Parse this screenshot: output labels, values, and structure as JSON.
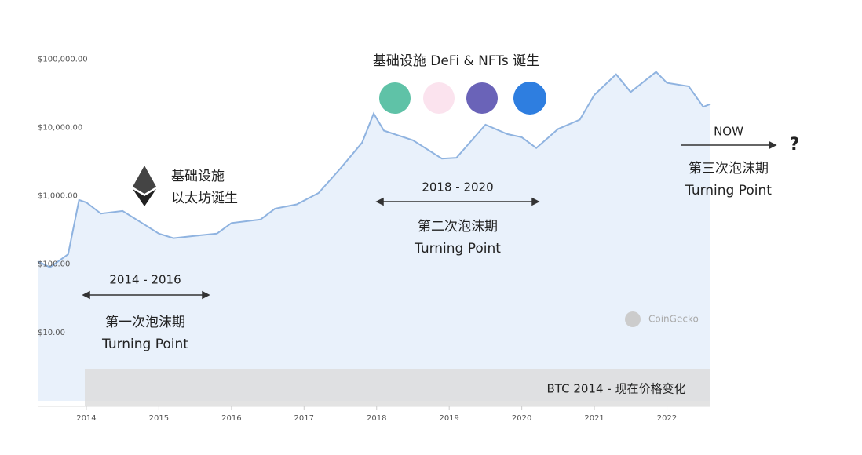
{
  "chart_data": {
    "type": "line",
    "log_scale": true,
    "color": "#8fb3e0",
    "fill_color": "#e9f1fb",
    "x": [
      2013.33,
      2013.5,
      2013.75,
      2013.9,
      2014.0,
      2014.2,
      2014.5,
      2014.8,
      2015.0,
      2015.2,
      2015.5,
      2015.8,
      2016.0,
      2016.4,
      2016.6,
      2016.9,
      2017.2,
      2017.5,
      2017.8,
      2017.96,
      2018.1,
      2018.5,
      2018.9,
      2019.1,
      2019.5,
      2019.8,
      2020.0,
      2020.2,
      2020.5,
      2020.8,
      2021.0,
      2021.3,
      2021.5,
      2021.85,
      2022.0,
      2022.3,
      2022.5,
      2022.6
    ],
    "values": [
      110,
      90,
      140,
      870,
      800,
      550,
      600,
      380,
      280,
      240,
      260,
      280,
      400,
      450,
      650,
      750,
      1100,
      2500,
      6000,
      16000,
      9000,
      6500,
      3500,
      3600,
      11000,
      8000,
      7200,
      5000,
      9500,
      13000,
      30000,
      60000,
      33000,
      65000,
      45000,
      40000,
      20000,
      22000
    ],
    "xlim": [
      2013.33,
      2022.6
    ],
    "xticks": [
      2014,
      2015,
      2016,
      2017,
      2018,
      2019,
      2020,
      2021,
      2022
    ],
    "ylim": [
      1,
      150000
    ],
    "yticks": [
      {
        "value": 10,
        "label": "$10.00"
      },
      {
        "value": 100,
        "label": "$100.00"
      },
      {
        "value": 1000,
        "label": "$1,000.00"
      },
      {
        "value": 10000,
        "label": "$10,000.00"
      },
      {
        "value": 100000,
        "label": "$100,000.00"
      }
    ],
    "annotations": [
      "基础设施 DeFi & NFTs 诞生",
      "基础设施",
      "以太坊诞生",
      "2014 - 2016",
      "第一次泡沫期",
      "Turning Point",
      "2018 - 2020",
      "第二次泡沫期",
      "Turning Point",
      "NOW",
      "?",
      "第三次泡沫期",
      "Turning Point",
      "CoinGecko",
      "BTC 2014 - 现在价格变化"
    ]
  }
}
